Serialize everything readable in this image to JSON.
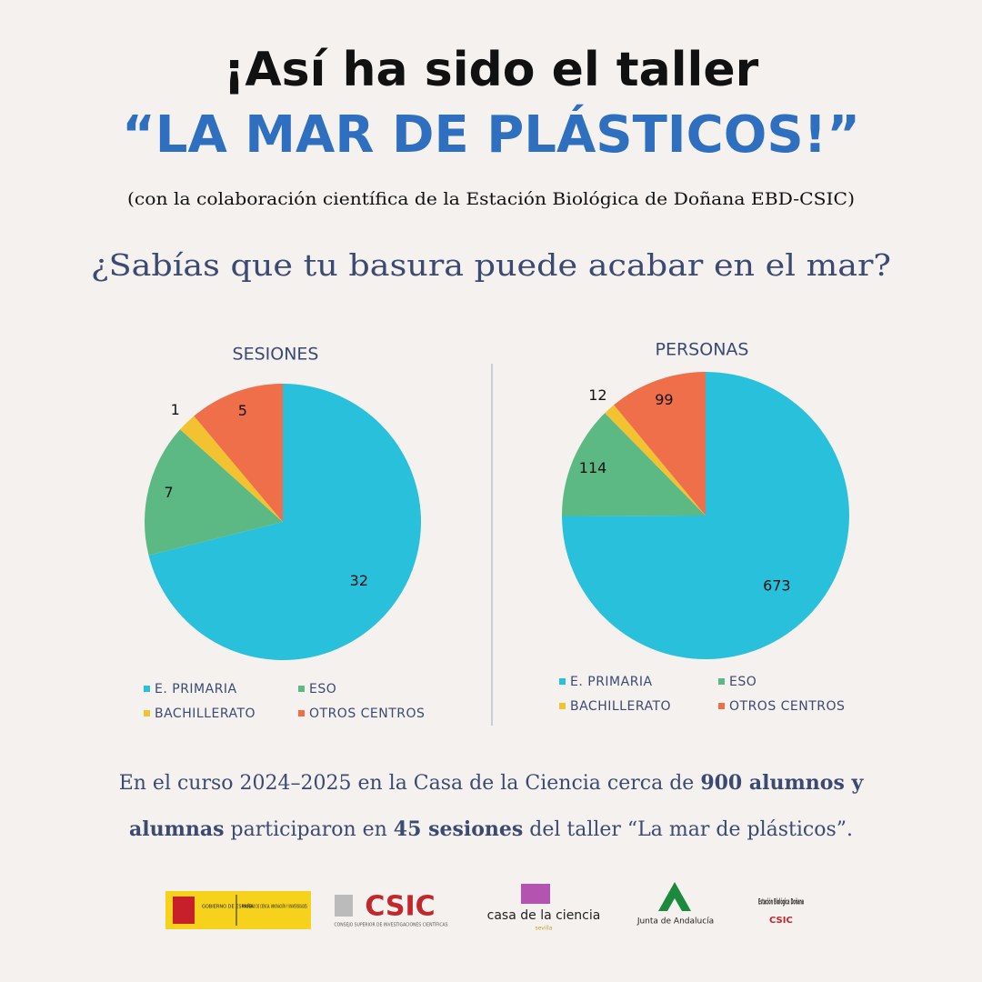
{
  "header": {
    "title": "¡Así ha sido el taller",
    "highlight": "“LA MAR DE PLÁSTICOS!”",
    "subtitle": "(con la colaboración científica de la Estación Biológica de Doñana EBD-CSIC)",
    "question": "¿Sabías que tu basura puede acabar en el mar?"
  },
  "chart_data": [
    {
      "type": "pie",
      "title": "SESIONES",
      "categories": [
        "E. PRIMARIA",
        "ESO",
        "BACHILLERATO",
        "OTROS CENTROS"
      ],
      "values": [
        32,
        7,
        1,
        5
      ],
      "colors": [
        "#28c0da",
        "#5cb983",
        "#f2c230",
        "#ee6f4a"
      ]
    },
    {
      "type": "pie",
      "title": "PERSONAS",
      "categories": [
        "E. PRIMARIA",
        "ESO",
        "BACHILLERATO",
        "OTROS CENTROS"
      ],
      "values": [
        673,
        114,
        12,
        99
      ],
      "colors": [
        "#28c0da",
        "#5cb983",
        "#f2c230",
        "#ee6f4a"
      ]
    }
  ],
  "footer": {
    "text": [
      {
        "text": "En el curso 2024–2025 en la Casa de la Ciencia cerca de ",
        "bold": false
      },
      {
        "text": "900 alumnos y alumnas",
        "bold": true
      },
      {
        "text": " participaron en ",
        "bold": false
      },
      {
        "text": "45 sesiones",
        "bold": true
      },
      {
        "text": " del taller “La mar de plásticos”.",
        "bold": false
      }
    ]
  },
  "logos": {
    "gobierno": "GOBIERNO DE ESPAÑA",
    "ministerio": "MINISTERIO DE CIENCIA, INNOVACIÓN Y UNIVERSIDADES",
    "csic": "CSIC",
    "csic_full": "CONSEJO SUPERIOR DE INVESTIGACIONES CIENTÍFICAS",
    "casa": "casa de la ciencia",
    "casa_city": "sevilla",
    "junta": "Junta de Andalucía",
    "ebd": "Estación Biológica Doñana",
    "ebd_csic": "CSIC"
  }
}
